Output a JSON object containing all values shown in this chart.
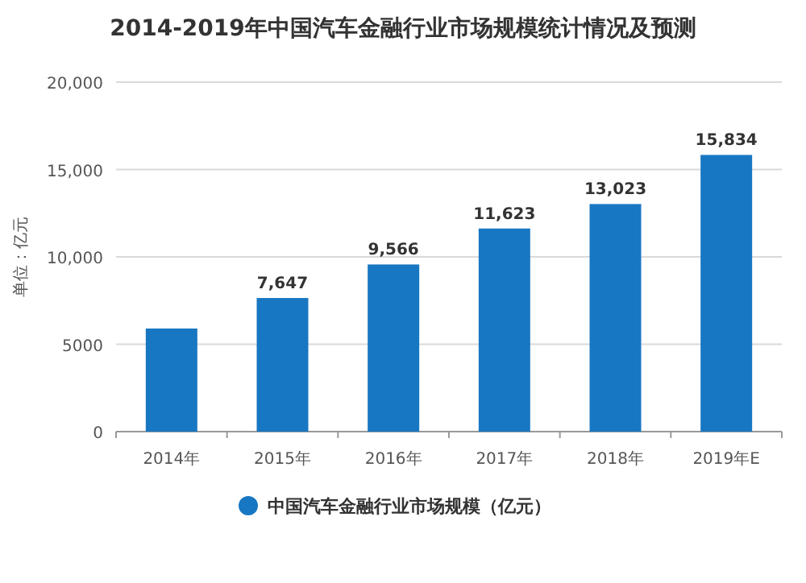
{
  "chart_data": {
    "type": "bar",
    "title": "2014-2019年中国汽车金融行业市场规模统计情况及预测",
    "ylabel": "单位：亿元",
    "categories": [
      "2014年",
      "2015年",
      "2016年",
      "2017年",
      "2018年",
      "2019年E"
    ],
    "series": [
      {
        "name": "中国汽车金融行业市场规模（亿元）",
        "color": "#1877c2",
        "values": [
          5900,
          7647,
          9566,
          11623,
          13023,
          15834
        ],
        "value_labels": [
          null,
          "7,647",
          "9,566",
          "11,623",
          "13,023",
          "15,834"
        ]
      }
    ],
    "ylim": [
      0,
      20000
    ],
    "yticks": [
      0,
      {
        "value": 5000,
        "label": "5000"
      },
      {
        "value": 10000,
        "label": "10,000"
      },
      {
        "value": 15000,
        "label": "15,000"
      },
      {
        "value": 20000,
        "label": "20,000"
      }
    ],
    "grid": "y",
    "legend": "bottom"
  }
}
